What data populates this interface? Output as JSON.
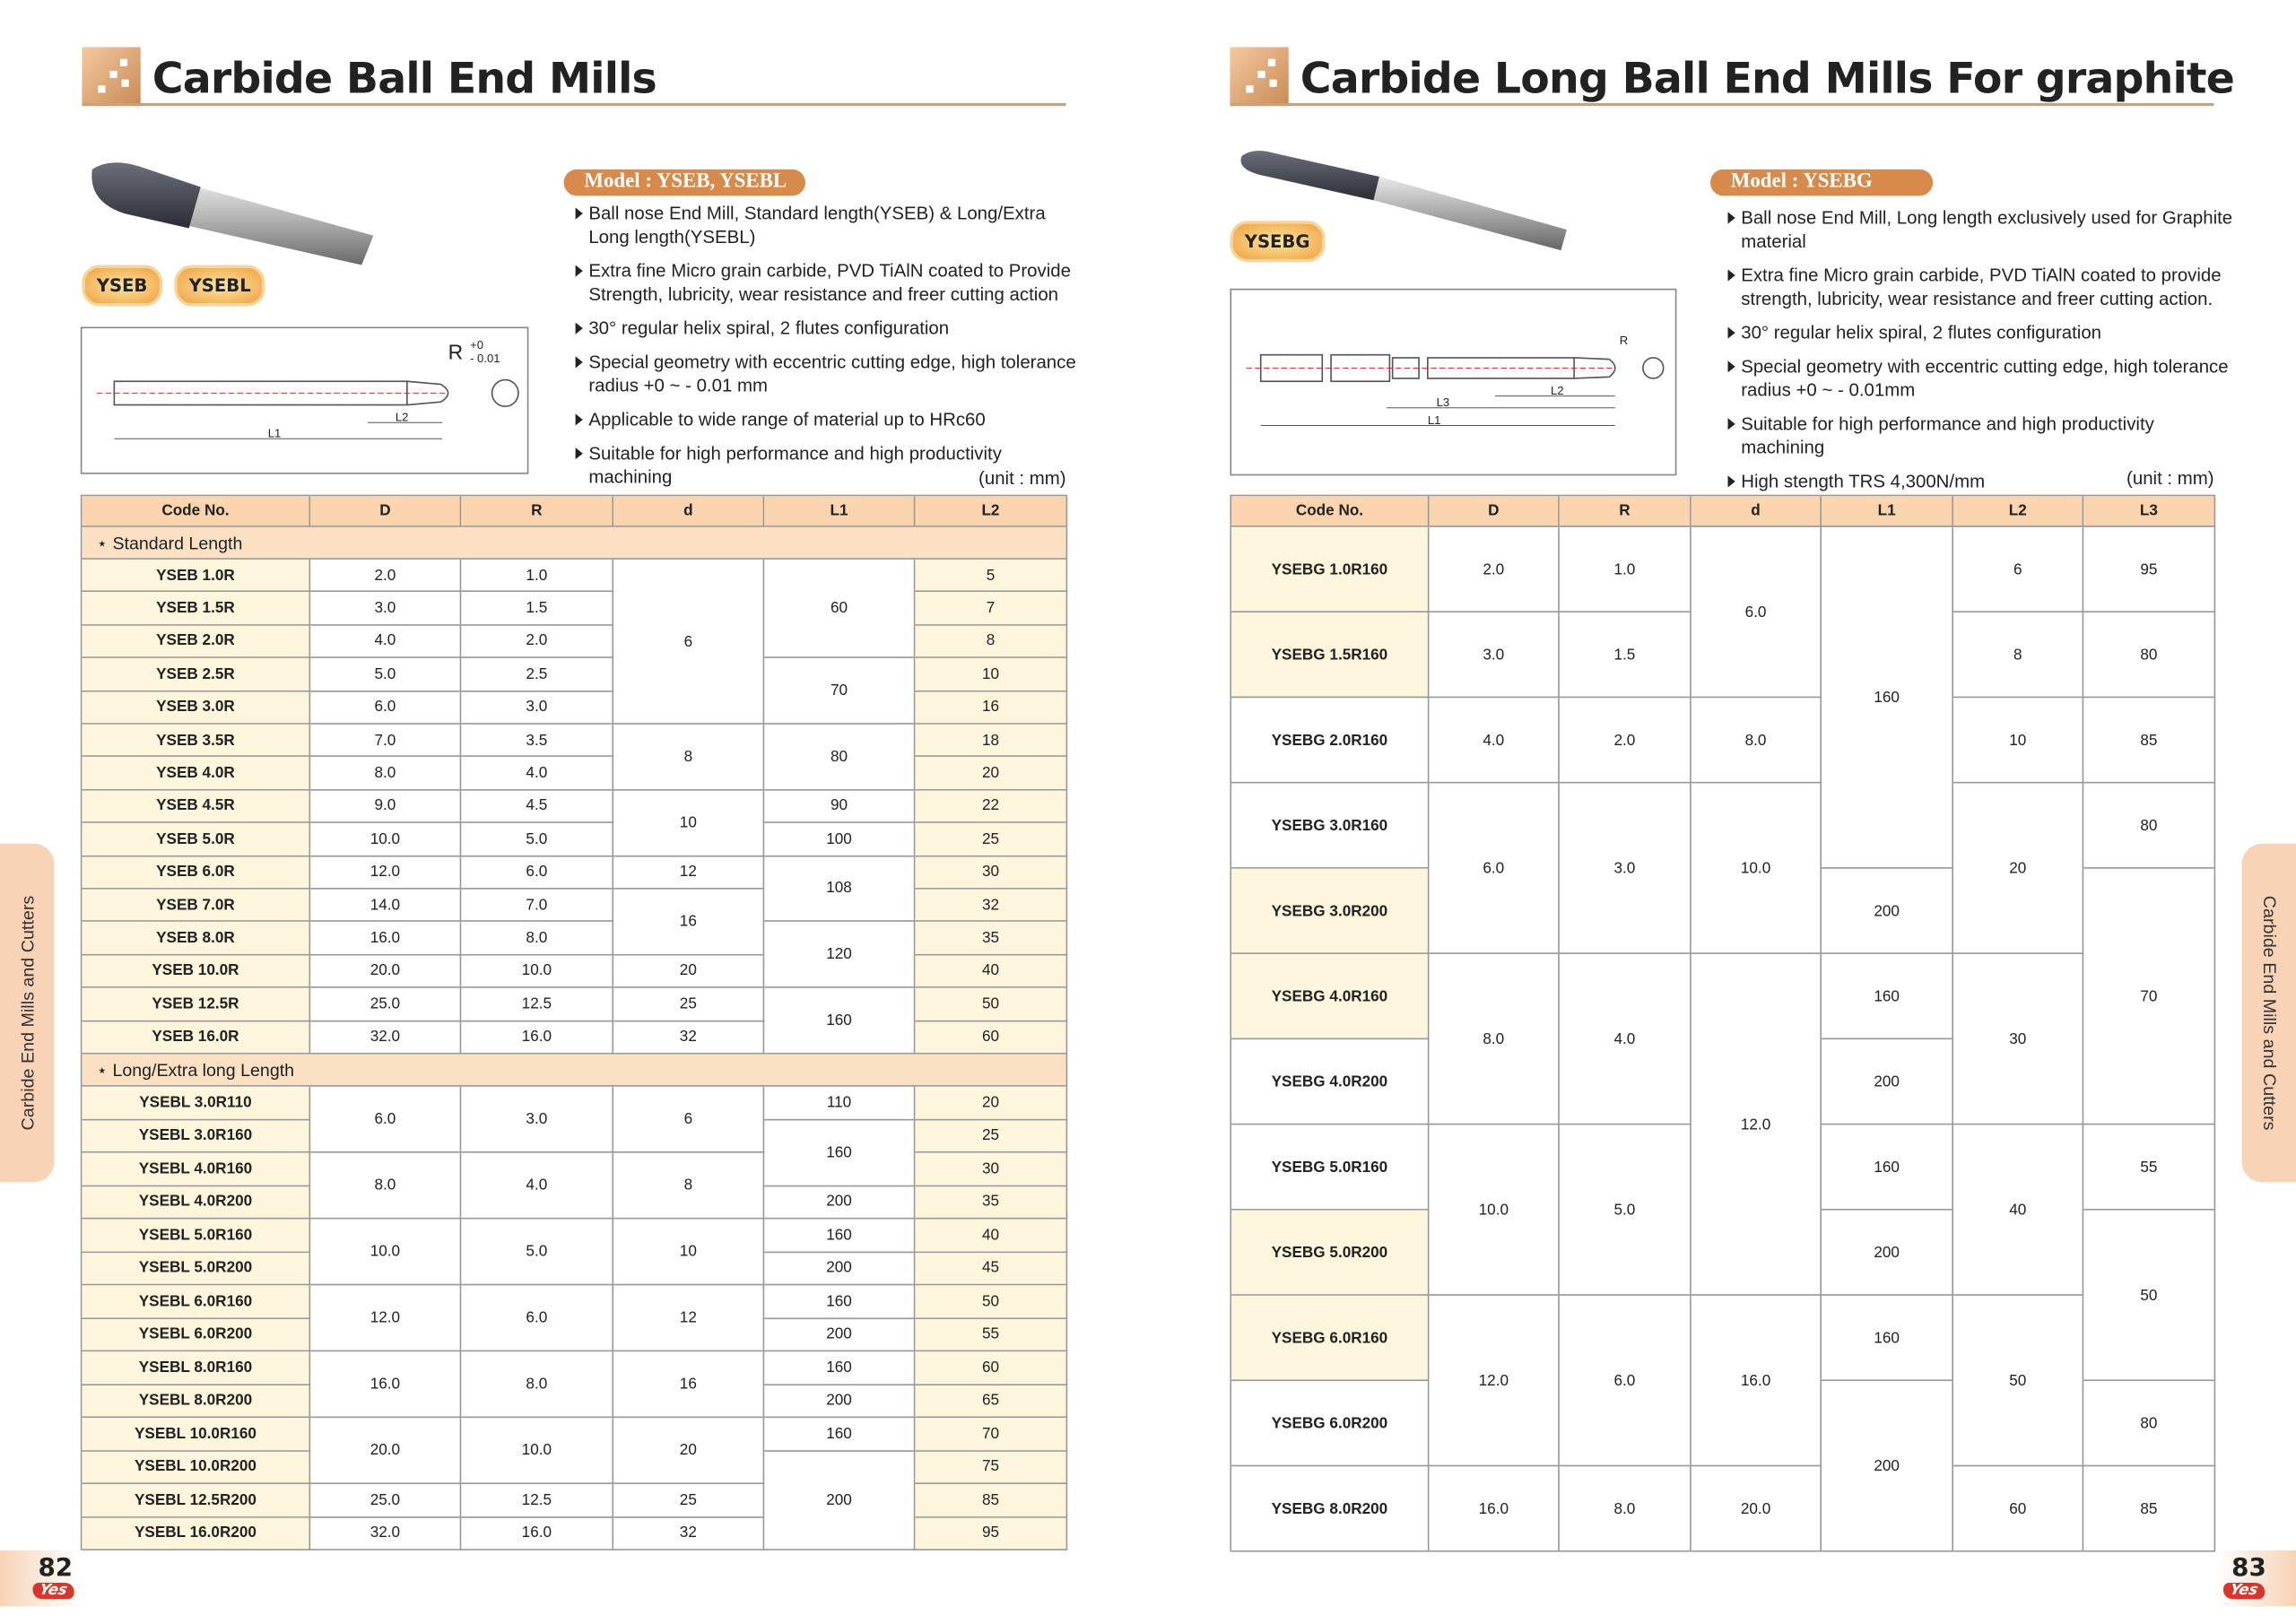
{
  "left": {
    "title": "Carbide Ball End Mills",
    "badges": [
      "YSEB",
      "YSEBL"
    ],
    "drawing": {
      "radius": "R",
      "tol_upper": "+0",
      "tol_lower": "- 0.01",
      "dims": [
        "L1",
        "L2"
      ]
    },
    "model": "Model : YSEB, YSEBL",
    "bullets": [
      "Ball nose End Mill, Standard length(YSEB) & Long/Extra Long length(YSEBL)",
      "Extra fine Micro grain carbide, PVD TiAlN coated to Provide Strength, lubricity, wear resistance and freer cutting action",
      "30° regular helix spiral, 2 flutes configuration",
      "Special geometry with eccentric cutting edge, high tolerance radius +0 ~ - 0.01 mm",
      "Applicable to wide range of material up to HRc60",
      "Suitable for high performance and high productivity machining"
    ],
    "unit": "(unit : mm)",
    "table": {
      "header": [
        "Code No.",
        "D",
        "R",
        "d",
        "L1",
        "L2"
      ],
      "sections": [
        {
          "label": "⋆ Standard Length",
          "cols": [
            [
              "YSEB 1.0R",
              "YSEB 1.5R",
              "YSEB 2.0R",
              "YSEB 2.5R",
              "YSEB 3.0R",
              "YSEB 3.5R",
              "YSEB 4.0R",
              "YSEB 4.5R",
              "YSEB 5.0R",
              "YSEB 6.0R",
              "YSEB 7.0R",
              "YSEB 8.0R",
              "YSEB 10.0R",
              "YSEB 12.5R",
              "YSEB 16.0R"
            ],
            [
              "2.0",
              "3.0",
              "4.0",
              "5.0",
              "6.0",
              "7.0",
              "8.0",
              "9.0",
              "10.0",
              "12.0",
              "14.0",
              "16.0",
              "20.0",
              "25.0",
              "32.0"
            ],
            [
              "1.0",
              "1.5",
              "2.0",
              "2.5",
              "3.0",
              "3.5",
              "4.0",
              "4.5",
              "5.0",
              "6.0",
              "7.0",
              "8.0",
              "10.0",
              "12.5",
              "16.0"
            ],
            [
              "6",
              "8",
              "10",
              "12",
              "16",
              "20",
              "25",
              "32"
            ],
            [
              "60",
              "70",
              "80",
              "90",
              "100",
              "108",
              "120",
              "160"
            ],
            [
              "5",
              "7",
              "8",
              "10",
              "16",
              "18",
              "20",
              "22",
              "25",
              "30",
              "32",
              "35",
              "40",
              "50",
              "60"
            ]
          ]
        },
        {
          "label": "⋆ Long/Extra long Length",
          "cols": [
            [
              "YSEBL 3.0R110",
              "YSEBL 3.0R160",
              "YSEBL 4.0R160",
              "YSEBL 4.0R200",
              "YSEBL 5.0R160",
              "YSEBL 5.0R200",
              "YSEBL 6.0R160",
              "YSEBL 6.0R200",
              "YSEBL 8.0R160",
              "YSEBL 8.0R200",
              "YSEBL 10.0R160",
              "YSEBL 10.0R200",
              "YSEBL 12.5R200",
              "YSEBL 16.0R200"
            ],
            [
              "6.0",
              "8.0",
              "10.0",
              "12.0",
              "16.0",
              "20.0",
              "25.0",
              "32.0"
            ],
            [
              "3.0",
              "4.0",
              "5.0",
              "6.0",
              "8.0",
              "10.0",
              "12.5",
              "16.0"
            ],
            [
              "6",
              "8",
              "10",
              "12",
              "16",
              "20",
              "25",
              "32"
            ],
            [
              "110",
              "160",
              "200",
              "160",
              "200",
              "160",
              "200",
              "160",
              "200",
              "160",
              "200"
            ],
            [
              "20",
              "25",
              "30",
              "35",
              "40",
              "45",
              "50",
              "55",
              "60",
              "65",
              "70",
              "75",
              "85",
              "95"
            ]
          ]
        }
      ]
    },
    "page": "82",
    "side_tab": "Carbide End Mills and Cutters"
  },
  "right": {
    "title": "Carbide Long Ball End Mills For graphite",
    "badges": [
      "YSEBG"
    ],
    "drawing": {
      "radius": "R",
      "dims": [
        "L3",
        "L2",
        "L1"
      ]
    },
    "model": "Model : YSEBG",
    "bullets": [
      "Ball nose End Mill,  Long length exclusively used for Graphite material",
      "Extra fine Micro grain carbide, PVD TiAlN coated to provide strength, lubricity, wear resistance and freer cutting action.",
      "30° regular helix spiral, 2 flutes configuration",
      "Special geometry with eccentric cutting edge, high tolerance radius +0 ~ - 0.01mm",
      "Suitable for high performance and high productivity machining",
      "High stength TRS 4,300N/mm"
    ],
    "unit": "(unit : mm)",
    "table": {
      "header": [
        "Code No.",
        "D",
        "R",
        "d",
        "L1",
        "L2",
        "L3"
      ],
      "sections": [
        {
          "cols": [
            [
              "YSEBG 1.0R160",
              "YSEBG 1.5R160",
              "YSEBG 2.0R160",
              "YSEBG 3.0R160",
              "YSEBG 3.0R200",
              "YSEBG 4.0R160",
              "YSEBG 4.0R200",
              "YSEBG 5.0R160",
              "YSEBG 5.0R200",
              "YSEBG 6.0R160",
              "YSEBG 6.0R200",
              "YSEBG 8.0R200"
            ],
            [
              "2.0",
              "3.0",
              "4.0",
              "6.0",
              "8.0",
              "10.0",
              "12.0",
              "16.0"
            ],
            [
              "1.0",
              "1.5",
              "2.0",
              "3.0",
              "4.0",
              "5.0",
              "6.0",
              "8.0"
            ],
            [
              "6.0",
              "8.0",
              "10.0",
              "12.0",
              "16.0",
              "20.0"
            ],
            [
              "160",
              "200",
              "160",
              "200",
              "160",
              "200",
              "160",
              "200"
            ],
            [
              "6",
              "8",
              "10",
              "20",
              "30",
              "40",
              "50",
              "60"
            ],
            [
              "95",
              "80",
              "85",
              "80",
              "70",
              "55",
              "50",
              "80",
              "85"
            ]
          ]
        }
      ]
    },
    "page": "83",
    "side_tab": "Carbide End Mills and Cutters"
  },
  "logo": "Yes"
}
